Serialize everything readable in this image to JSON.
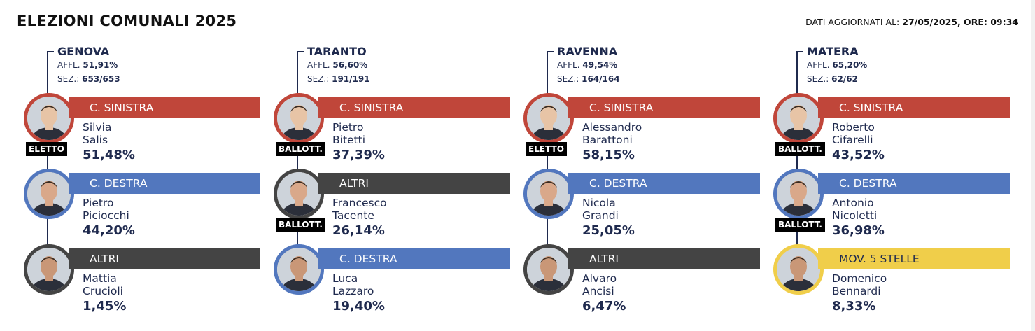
{
  "header": {
    "title": "ELEZIONI COMUNALI 2025",
    "updated_prefix": "DATI AGGIORNATI AL:",
    "updated_value": "27/05/2025, ORE: 09:34"
  },
  "colors": {
    "sinistra": "#c0463a",
    "destra": "#5277be",
    "altri": "#444444",
    "m5s": "#f0ce4a"
  },
  "columns": [
    {
      "city": "GENOVA",
      "affl_label": "AFFL.",
      "affl": "51,91%",
      "sez_label": "SEZ.:",
      "sez": "653/653",
      "candidates": [
        {
          "coalition": "C. SINISTRA",
          "first": "Silvia",
          "last": "Salis",
          "pct": "51,48%",
          "badge": "ELETTO"
        },
        {
          "coalition": "C. DESTRA",
          "first": "Pietro",
          "last": "Piciocchi",
          "pct": "44,20%",
          "badge": ""
        },
        {
          "coalition": "ALTRI",
          "first": "Mattia",
          "last": "Crucioli",
          "pct": "1,45%",
          "badge": ""
        }
      ]
    },
    {
      "city": "TARANTO",
      "affl_label": "AFFL.",
      "affl": "56,60%",
      "sez_label": "SEZ.:",
      "sez": "191/191",
      "candidates": [
        {
          "coalition": "C. SINISTRA",
          "first": "Pietro",
          "last": "Bitetti",
          "pct": "37,39%",
          "badge": "BALLOTT."
        },
        {
          "coalition": "ALTRI",
          "first": "Francesco",
          "last": "Tacente",
          "pct": "26,14%",
          "badge": "BALLOTT."
        },
        {
          "coalition": "C. DESTRA",
          "first": "Luca",
          "last": "Lazzaro",
          "pct": "19,40%",
          "badge": ""
        }
      ]
    },
    {
      "city": "RAVENNA",
      "affl_label": "AFFL.",
      "affl": "49,54%",
      "sez_label": "SEZ.:",
      "sez": "164/164",
      "candidates": [
        {
          "coalition": "C. SINISTRA",
          "first": "Alessandro",
          "last": "Barattoni",
          "pct": "58,15%",
          "badge": "ELETTO"
        },
        {
          "coalition": "C. DESTRA",
          "first": "Nicola",
          "last": "Grandi",
          "pct": "25,05%",
          "badge": ""
        },
        {
          "coalition": "ALTRI",
          "first": "Alvaro",
          "last": "Ancisi",
          "pct": "6,47%",
          "badge": ""
        }
      ]
    },
    {
      "city": "MATERA",
      "affl_label": "AFFL.",
      "affl": "65,20%",
      "sez_label": "SEZ.:",
      "sez": "62/62",
      "candidates": [
        {
          "coalition": "C. SINISTRA",
          "first": "Roberto",
          "last": "Cifarelli",
          "pct": "43,52%",
          "badge": "BALLOTT."
        },
        {
          "coalition": "C. DESTRA",
          "first": "Antonio",
          "last": "Nicoletti",
          "pct": "36,98%",
          "badge": "BALLOTT."
        },
        {
          "coalition": "MOV. 5 STELLE",
          "first": "Domenico",
          "last": "Bennardi",
          "pct": "8,33%",
          "badge": ""
        }
      ]
    }
  ]
}
